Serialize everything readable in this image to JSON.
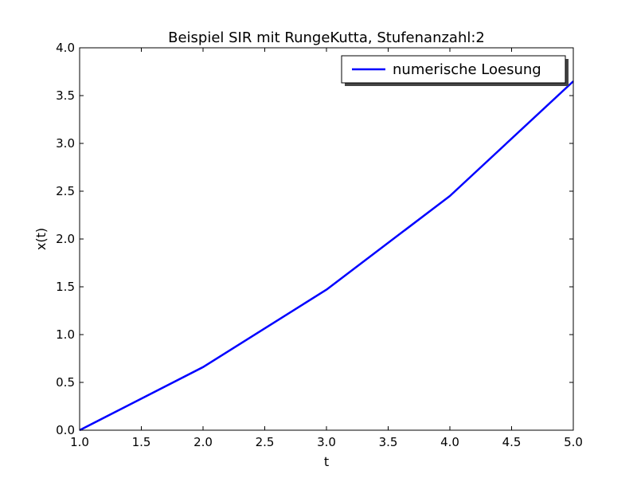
{
  "chart_data": {
    "type": "line",
    "title": "Beispiel SIR mit RungeKutta, Stufenanzahl:2",
    "xlabel": "t",
    "ylabel": "x(t)",
    "xlim": [
      1.0,
      5.0
    ],
    "ylim": [
      0.0,
      4.0
    ],
    "xticks": [
      "1.0",
      "1.5",
      "2.0",
      "2.5",
      "3.0",
      "3.5",
      "4.0",
      "4.5",
      "5.0"
    ],
    "yticks": [
      "0.0",
      "0.5",
      "1.0",
      "1.5",
      "2.0",
      "2.5",
      "3.0",
      "3.5",
      "4.0"
    ],
    "grid": false,
    "legend_position": "top-right",
    "series": [
      {
        "name": "numerische Loesung",
        "color": "#0000ff",
        "x": [
          1.0,
          2.0,
          3.0,
          4.0,
          5.0
        ],
        "y": [
          0.0,
          0.66,
          1.47,
          2.45,
          3.65
        ]
      }
    ]
  }
}
